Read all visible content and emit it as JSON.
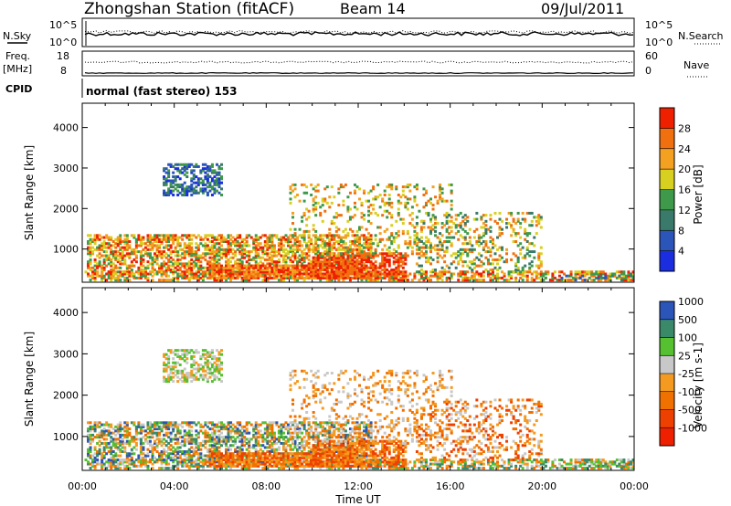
{
  "header": {
    "station_title": "Zhongshan Station (fitACF)",
    "beam": "Beam 14",
    "date": "09/Jul/2011"
  },
  "strip_labels": {
    "nsky": "N.Sky",
    "nsearch": "N.Search",
    "freq": "Freq.",
    "freq_unit": "[MHz]",
    "nave": "Nave",
    "cpid": "CPID",
    "cpid_text": "normal (fast stereo) 153",
    "noise_top": "10^5",
    "noise_bottom": "10^0",
    "freq_top": "18",
    "freq_bottom": "8",
    "nave_top": "60",
    "nave_bottom": "0"
  },
  "colors": {
    "power": [
      "#1a2ee0",
      "#2b55b8",
      "#3a7a6a",
      "#3e9a4a",
      "#d8d020",
      "#f4a020",
      "#f07010",
      "#ee2000"
    ],
    "velocity": [
      "#ee2000",
      "#ee4000",
      "#f07000",
      "#f49a20",
      "#c8c8c8",
      "#55c030",
      "#3a8a6a",
      "#2b55b8"
    ]
  },
  "chart_data": [
    {
      "type": "heatmap",
      "title": "Power",
      "ylabel": "Slant Range [km]",
      "ylim": [
        180,
        4600
      ],
      "yticks": [
        "1000",
        "2000",
        "3000",
        "4000"
      ],
      "colorbar_label": "Power [dB]",
      "colorbar_ticks": [
        "4",
        "8",
        "12",
        "16",
        "20",
        "24",
        "28"
      ],
      "clim": [
        0,
        32
      ]
    },
    {
      "type": "heatmap",
      "title": "Velocity",
      "ylabel": "Slant Range [km]",
      "ylim": [
        180,
        4600
      ],
      "yticks": [
        "1000",
        "2000",
        "3000",
        "4000"
      ],
      "colorbar_label": "Velocity [m s-1]",
      "colorbar_ticks": [
        "-1000",
        "-500",
        "-100",
        "-25",
        "25",
        "100",
        "500",
        "1000"
      ],
      "xlabel": "Time UT",
      "xticks": [
        "00:00",
        "04:00",
        "08:00",
        "12:00",
        "16:00",
        "20:00",
        "00:00"
      ],
      "xlim": [
        0,
        24
      ]
    }
  ]
}
